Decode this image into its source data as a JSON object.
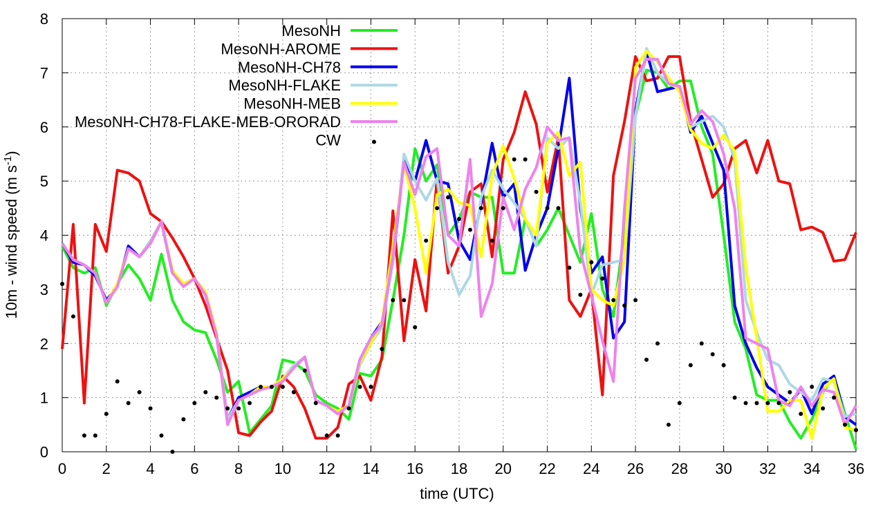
{
  "chart_data": {
    "type": "line",
    "x_label": "time (UTC)",
    "y_label": {
      "text": "10m - wind speed  (m s",
      "superscript": "-1",
      "suffix": ")"
    },
    "x": [
      0,
      0.5,
      1,
      1.5,
      2,
      2.5,
      3,
      3.5,
      4,
      4.5,
      5,
      5.5,
      6,
      6.5,
      7,
      7.5,
      8,
      8.5,
      9,
      9.5,
      10,
      10.5,
      11,
      11.5,
      12,
      12.5,
      13,
      13.5,
      14,
      14.5,
      15,
      15.5,
      16,
      16.5,
      17,
      17.5,
      18,
      18.5,
      19,
      19.5,
      20,
      20.5,
      21,
      21.5,
      22,
      22.5,
      23,
      23.5,
      24,
      24.5,
      25,
      25.5,
      26,
      26.5,
      27,
      27.5,
      28,
      28.5,
      29,
      29.5,
      30,
      30.5,
      31,
      31.5,
      32,
      32.5,
      33,
      33.5,
      34,
      34.5,
      35,
      35.5,
      36
    ],
    "xlim": [
      0,
      36
    ],
    "xticks": [
      0,
      2,
      4,
      6,
      8,
      10,
      12,
      14,
      16,
      18,
      20,
      22,
      24,
      26,
      28,
      30,
      32,
      34,
      36
    ],
    "ylim": [
      0,
      8
    ],
    "yticks": [
      0,
      1,
      2,
      3,
      4,
      5,
      6,
      7,
      8
    ],
    "grid": true,
    "legend_position": "top-left",
    "series": [
      {
        "name": "MesoNH",
        "color": "#22ee22",
        "style": "line",
        "values": [
          3.8,
          3.4,
          3.3,
          3.4,
          2.7,
          3.1,
          3.45,
          3.2,
          2.8,
          3.65,
          2.8,
          2.4,
          2.25,
          2.2,
          1.7,
          1.1,
          1.3,
          0.35,
          0.6,
          0.85,
          1.7,
          1.65,
          1.5,
          1.05,
          0.9,
          0.8,
          0.6,
          1.45,
          1.4,
          1.7,
          2.8,
          4.0,
          5.6,
          5.0,
          5.3,
          4.0,
          4.3,
          4.8,
          4.7,
          4.7,
          3.3,
          3.3,
          4.3,
          3.8,
          4.1,
          4.5,
          4.0,
          3.5,
          4.4,
          3.0,
          2.5,
          4.1,
          6.2,
          7.05,
          7.0,
          6.7,
          6.85,
          6.85,
          6.0,
          5.5,
          4.0,
          2.4,
          1.9,
          1.05,
          0.95,
          0.95,
          0.55,
          0.25,
          0.6,
          1.1,
          1.4,
          0.7,
          0.05
        ]
      },
      {
        "name": "MesoNH-AROME",
        "color": "#ee1111",
        "style": "line",
        "values": [
          1.9,
          4.2,
          0.9,
          4.2,
          3.7,
          5.2,
          5.15,
          5.0,
          4.4,
          4.25,
          3.95,
          3.6,
          3.2,
          2.7,
          2.1,
          1.5,
          0.35,
          0.3,
          0.55,
          0.75,
          1.4,
          1.2,
          0.8,
          0.25,
          0.25,
          0.45,
          1.25,
          1.4,
          0.95,
          1.75,
          4.45,
          2.05,
          3.55,
          2.6,
          5.05,
          3.3,
          3.8,
          4.8,
          4.95,
          3.6,
          5.4,
          5.9,
          6.65,
          6.05,
          4.8,
          5.8,
          2.8,
          2.5,
          3.0,
          1.05,
          5.1,
          6.1,
          7.3,
          6.85,
          6.9,
          7.3,
          7.3,
          6.1,
          5.4,
          4.7,
          4.95,
          5.6,
          5.75,
          5.15,
          5.75,
          5.0,
          4.95,
          4.1,
          4.15,
          4.05,
          3.52,
          3.55,
          4.05
        ]
      },
      {
        "name": "MesoNH-CH78",
        "color": "#0000ee",
        "style": "line",
        "values": [
          3.85,
          3.5,
          3.45,
          3.25,
          2.8,
          3.05,
          3.8,
          3.6,
          3.85,
          4.25,
          3.3,
          3.1,
          3.2,
          2.9,
          2.2,
          0.6,
          1.0,
          1.1,
          1.2,
          1.2,
          1.35,
          1.55,
          1.75,
          0.95,
          0.85,
          0.75,
          0.85,
          1.7,
          2.1,
          2.4,
          3.5,
          5.4,
          5.0,
          5.75,
          5.0,
          4.95,
          3.9,
          3.55,
          4.6,
          5.7,
          4.7,
          4.95,
          3.35,
          4.0,
          4.5,
          5.6,
          6.9,
          4.5,
          3.3,
          3.6,
          2.1,
          2.4,
          6.3,
          7.4,
          6.65,
          6.7,
          6.75,
          5.9,
          6.2,
          5.7,
          5.2,
          2.7,
          2.0,
          1.55,
          1.2,
          1.05,
          0.9,
          1.15,
          0.7,
          1.25,
          1.4,
          0.65,
          0.5
        ]
      },
      {
        "name": "MesoNH-FLAKE",
        "color": "#add8e6",
        "style": "line",
        "values": [
          3.85,
          3.55,
          3.45,
          3.3,
          2.75,
          3.05,
          3.75,
          3.6,
          3.9,
          4.25,
          3.35,
          3.1,
          3.2,
          2.95,
          2.2,
          0.6,
          0.95,
          1.05,
          1.15,
          1.2,
          1.35,
          1.6,
          1.75,
          0.95,
          0.85,
          0.7,
          0.85,
          1.6,
          2.0,
          2.3,
          3.5,
          5.5,
          5.0,
          4.65,
          5.05,
          3.5,
          2.9,
          3.25,
          4.7,
          5.2,
          4.85,
          4.6,
          4.3,
          3.8,
          5.8,
          5.6,
          5.8,
          4.6,
          2.9,
          3.45,
          3.5,
          3.55,
          6.2,
          7.45,
          7.0,
          6.8,
          6.7,
          6.0,
          6.1,
          6.2,
          6.0,
          5.4,
          2.8,
          2.2,
          1.7,
          1.6,
          1.25,
          1.1,
          0.95,
          1.35,
          1.3,
          0.65,
          0.7
        ]
      },
      {
        "name": "MesoNH-MEB",
        "color": "#ffff00",
        "style": "line",
        "values": [
          3.85,
          3.55,
          3.45,
          3.3,
          2.75,
          3.1,
          3.75,
          3.6,
          3.85,
          4.25,
          3.35,
          3.1,
          3.2,
          2.95,
          2.2,
          0.5,
          0.95,
          1.05,
          1.2,
          1.2,
          1.35,
          1.55,
          1.75,
          0.95,
          0.85,
          0.75,
          0.85,
          1.65,
          2.0,
          2.4,
          3.8,
          5.3,
          4.5,
          3.3,
          4.75,
          4.85,
          4.6,
          4.55,
          3.6,
          5.1,
          5.65,
          5.05,
          4.3,
          4.0,
          5.7,
          5.9,
          5.1,
          5.35,
          3.0,
          2.8,
          2.7,
          3.55,
          7.1,
          7.4,
          7.2,
          6.9,
          6.65,
          5.95,
          5.7,
          5.6,
          5.85,
          5.55,
          3.4,
          2.1,
          0.75,
          0.75,
          0.95,
          0.95,
          0.25,
          1.15,
          1.35,
          0.45,
          0.4
        ]
      },
      {
        "name": "MesoNH-CH78-FLAKE-MEB-ORORAD",
        "color": "#ee82ee",
        "style": "line",
        "values": [
          3.85,
          3.55,
          3.45,
          3.3,
          2.75,
          3.05,
          3.75,
          3.6,
          3.85,
          4.25,
          3.3,
          3.05,
          3.2,
          2.9,
          2.15,
          0.5,
          0.95,
          1.05,
          1.15,
          1.2,
          1.3,
          1.55,
          1.75,
          0.95,
          0.85,
          0.7,
          0.85,
          1.7,
          2.1,
          2.35,
          3.6,
          5.35,
          4.75,
          5.45,
          5.6,
          4.0,
          3.8,
          5.4,
          2.5,
          3.1,
          4.7,
          4.1,
          4.85,
          5.25,
          6.0,
          5.75,
          5.8,
          3.7,
          2.9,
          2.05,
          1.3,
          4.5,
          6.9,
          7.25,
          7.25,
          6.8,
          6.75,
          6.05,
          6.3,
          6.1,
          5.5,
          4.5,
          2.1,
          2.0,
          1.9,
          0.95,
          0.85,
          1.2,
          0.85,
          1.15,
          1.1,
          0.5,
          0.85
        ]
      },
      {
        "name": "CW",
        "color": "#000000",
        "style": "points",
        "values": [
          3.1,
          2.5,
          0.3,
          0.3,
          0.7,
          1.3,
          0.9,
          1.1,
          0.8,
          0.3,
          0,
          0.6,
          0.9,
          1.1,
          1.0,
          0.8,
          0.8,
          0.9,
          1.2,
          1.2,
          1.2,
          1.1,
          1.5,
          0.9,
          0.3,
          0.3,
          0.8,
          1.2,
          1.2,
          1.9,
          2.8,
          2.8,
          2.3,
          3.9,
          4.5,
          4.7,
          4.3,
          4.1,
          4.5,
          3.9,
          4.5,
          5.4,
          5.4,
          4.8,
          4.5,
          4.5,
          3.4,
          2.9,
          3.5,
          3.2,
          2.8,
          2.7,
          2.8,
          1.7,
          2.0,
          0.5,
          0.9,
          1.6,
          2.0,
          1.8,
          1.6,
          1.0,
          0.9,
          0.9,
          0.9,
          0.9,
          1.1,
          0.7,
          1.2,
          0.8,
          1.0,
          0.5,
          0.4
        ]
      }
    ]
  }
}
